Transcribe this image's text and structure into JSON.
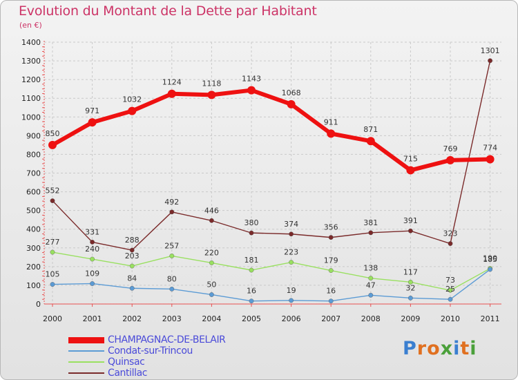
{
  "header": {
    "title": "Evolution du Montant de la Dette par Habitant",
    "subtitle": "(en €)"
  },
  "logo": {
    "text": "Proxiti"
  },
  "chart_data": {
    "type": "line",
    "title": "Evolution du Montant de la Dette par Habitant",
    "subtitle": "(en €)",
    "xlabel": "",
    "ylabel": "",
    "x": [
      "2000",
      "2001",
      "2002",
      "2003",
      "2004",
      "2005",
      "2006",
      "2007",
      "2008",
      "2009",
      "2010",
      "2011"
    ],
    "ylim": [
      0,
      1400
    ],
    "yticks": [
      "0",
      "100",
      "200",
      "300",
      "400",
      "500",
      "600",
      "700",
      "800",
      "900",
      "1000",
      "1100",
      "1200",
      "1300",
      "1400"
    ],
    "grid": true,
    "legend_position": "bottom-left",
    "series": [
      {
        "name": "CHAMPAGNAC-DE-BELAIR",
        "color": "#ee1111",
        "values": [
          850,
          971,
          1032,
          1124,
          1118,
          1143,
          1068,
          911,
          871,
          715,
          769,
          774
        ],
        "labels": [
          "850",
          "971",
          "1032",
          "1124",
          "1118",
          "1143",
          "1068",
          "911",
          "871",
          "715",
          "769",
          "774"
        ]
      },
      {
        "name": "Condat-sur-Trincou",
        "color": "#5b9bd5",
        "values": [
          105,
          109,
          84,
          80,
          50,
          16,
          19,
          16,
          47,
          32,
          25,
          185
        ],
        "labels": [
          "105",
          "109",
          "84",
          "80",
          "50",
          "16",
          "19",
          "16",
          "47",
          "32",
          "25",
          "185"
        ]
      },
      {
        "name": "Quinsac",
        "color": "#99e060",
        "values": [
          277,
          240,
          203,
          257,
          220,
          181,
          223,
          179,
          138,
          117,
          73,
          190
        ],
        "labels": [
          "277",
          "240",
          "203",
          "257",
          "220",
          "181",
          "223",
          "179",
          "138",
          "117",
          "73",
          "190"
        ]
      },
      {
        "name": "Cantillac",
        "color": "#7a2a2a",
        "values": [
          552,
          331,
          288,
          492,
          446,
          380,
          374,
          356,
          381,
          391,
          323,
          1301
        ],
        "labels": [
          "552",
          "331",
          "288",
          "492",
          "446",
          "380",
          "374",
          "356",
          "381",
          "391",
          "323",
          "1301"
        ]
      }
    ]
  }
}
